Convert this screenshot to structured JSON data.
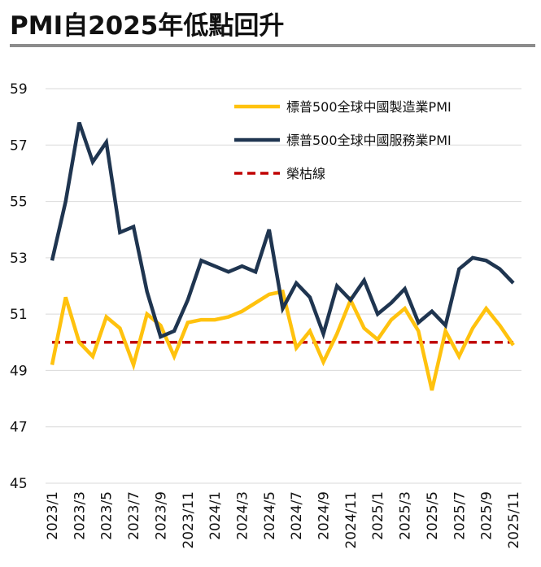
{
  "title": "PMI自2025年低點回升",
  "colors": {
    "manufacturing": "#FFC20E",
    "services": "#1F3550",
    "threshold": "#C00000",
    "grid": "#D9D9D9",
    "title_rule": "#8C8C8C"
  },
  "chart_data": {
    "type": "line",
    "title": "PMI自2025年低點回升",
    "xlabel": "",
    "ylabel": "",
    "ylim": [
      45,
      59
    ],
    "yticks": [
      45,
      47,
      49,
      51,
      53,
      55,
      57,
      59
    ],
    "grid": true,
    "legend_position": "top-right",
    "x": [
      "2023/1",
      "2023/2",
      "2023/3",
      "2023/4",
      "2023/5",
      "2023/6",
      "2023/7",
      "2023/8",
      "2023/9",
      "2023/10",
      "2023/11",
      "2023/12",
      "2024/1",
      "2024/2",
      "2024/3",
      "2024/4",
      "2024/5",
      "2024/6",
      "2024/7",
      "2024/8",
      "2024/9",
      "2024/10",
      "2024/11",
      "2024/12",
      "2025/1",
      "2025/2",
      "2025/3",
      "2025/4",
      "2025/5",
      "2025/6",
      "2025/7",
      "2025/8",
      "2025/9",
      "2025/10",
      "2025/11"
    ],
    "xtick_labels": [
      "2023/1",
      "2023/3",
      "2023/5",
      "2023/7",
      "2023/9",
      "2023/11",
      "2024/1",
      "2024/3",
      "2024/5",
      "2024/7",
      "2024/9",
      "2024/11",
      "2025/1",
      "2025/3",
      "2025/5",
      "2025/7",
      "2025/9",
      "2025/11"
    ],
    "series": [
      {
        "key": "manufacturing",
        "name": "標普500全球中國製造業PMI",
        "style": "solid",
        "values": [
          49.2,
          51.6,
          50.0,
          49.5,
          50.9,
          50.5,
          49.2,
          51.0,
          50.6,
          49.5,
          50.7,
          50.8,
          50.8,
          50.9,
          51.1,
          51.4,
          51.7,
          51.8,
          49.8,
          50.4,
          49.3,
          50.3,
          51.5,
          50.5,
          50.1,
          50.8,
          51.2,
          50.4,
          48.3,
          50.4,
          49.5,
          50.5,
          51.2,
          50.6,
          49.9
        ]
      },
      {
        "key": "services",
        "name": "標普500全球中國服務業PMI",
        "style": "solid",
        "values": [
          52.9,
          55.0,
          57.8,
          56.4,
          57.1,
          53.9,
          54.1,
          51.8,
          50.2,
          50.4,
          51.5,
          52.9,
          52.7,
          52.5,
          52.7,
          52.5,
          54.0,
          51.2,
          52.1,
          51.6,
          50.3,
          52.0,
          51.5,
          52.2,
          51.0,
          51.4,
          51.9,
          50.7,
          51.1,
          50.6,
          52.6,
          53.0,
          52.9,
          52.6,
          52.1
        ]
      },
      {
        "key": "threshold",
        "name": "榮枯線",
        "style": "dashed",
        "values": [
          50,
          50,
          50,
          50,
          50,
          50,
          50,
          50,
          50,
          50,
          50,
          50,
          50,
          50,
          50,
          50,
          50,
          50,
          50,
          50,
          50,
          50,
          50,
          50,
          50,
          50,
          50,
          50,
          50,
          50,
          50,
          50,
          50,
          50,
          50
        ]
      }
    ]
  }
}
